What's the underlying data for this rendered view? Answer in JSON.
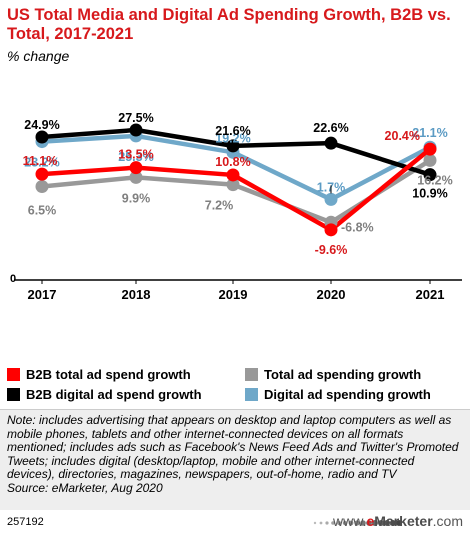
{
  "header": {
    "title": "US Total Media and Digital Ad Spending Growth, B2B vs. Total, 2017-2021",
    "subtitle": "% change"
  },
  "chart_data": {
    "type": "line",
    "x": [
      "2017",
      "2018",
      "2019",
      "2020",
      "2021"
    ],
    "ylim": [
      -11,
      30
    ],
    "zero_label": "0",
    "grid": false,
    "legend_position": "bottom",
    "series": [
      {
        "name": "B2B total ad spend growth",
        "color": "#ff0000",
        "values": [
          11.1,
          13.5,
          10.8,
          -9.6,
          20.4
        ],
        "labels": [
          "11.1%",
          "13.5%",
          "10.8%",
          "-9.6%",
          "20.4%"
        ]
      },
      {
        "name": "B2B digital ad spend growth",
        "color": "#000000",
        "values": [
          24.9,
          27.5,
          21.6,
          22.6,
          10.9
        ],
        "labels": [
          "24.9%",
          "27.5%",
          "21.6%",
          "22.6%",
          "10.9%"
        ]
      },
      {
        "name": "Total ad spending growth",
        "color": "#999999",
        "values": [
          6.5,
          9.9,
          7.2,
          -6.8,
          16.2
        ],
        "labels": [
          "6.5%",
          "9.9%",
          "7.2%",
          "-6.8%",
          "16.2%"
        ]
      },
      {
        "name": "Digital ad spending growth",
        "color": "#6fa8c9",
        "values": [
          23.2,
          25.3,
          19.2,
          1.7,
          21.1
        ],
        "labels": [
          "23.2%",
          "25.3%",
          "19.2%",
          "1.7%",
          "21.1%"
        ]
      }
    ]
  },
  "footer": {
    "note": "Note: includes advertising that appears on desktop and laptop computers as well as mobile phones, tablets and other internet-connected devices on all formats mentioned; includes ads such as Facebook's News Feed Ads and Twitter's Promoted Tweets; includes digital (desktop/laptop, mobile and other internet-connected devices), directories, magazines, newspapers, out-of-home, radio and TV",
    "source": "Source: eMarketer, Aug 2020",
    "chart_id": "257192",
    "brand_prefix": "www.",
    "brand_e": "e",
    "brand_rest": "Marketer",
    "brand_suffix": ".com"
  }
}
